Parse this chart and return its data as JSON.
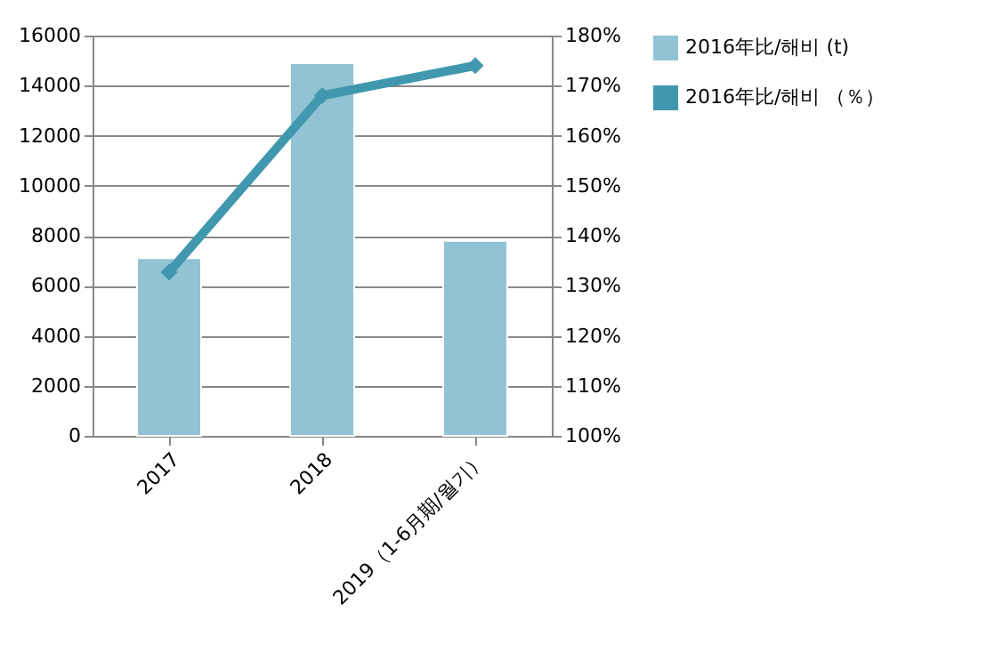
{
  "chart_data": {
    "type": "bar",
    "categories": [
      "2017",
      "2018",
      "2019（1-6月期/월기）"
    ],
    "series": [
      {
        "name": "2016年比/해비 (t)",
        "color": "#92c3d5",
        "values": [
          7100,
          14900,
          7800
        ]
      },
      {
        "name": "2016年比/해비 （％）",
        "type": "line",
        "axis": "y2",
        "color": "#4198ae",
        "values": [
          132.7,
          168,
          174
        ]
      }
    ],
    "ylim": [
      0,
      16000
    ],
    "yticks": [
      0,
      2000,
      4000,
      6000,
      8000,
      10000,
      12000,
      14000,
      16000
    ],
    "y2lim": [
      100,
      180
    ],
    "y2ticks": [
      {
        "value": 100,
        "label": "100%"
      },
      {
        "value": 110,
        "label": "110%"
      },
      {
        "value": 120,
        "label": "120%"
      },
      {
        "value": 130,
        "label": "130%"
      },
      {
        "value": 140,
        "label": "140%"
      },
      {
        "value": 150,
        "label": "150%"
      },
      {
        "value": 160,
        "label": "160%"
      },
      {
        "value": 170,
        "label": "170%"
      },
      {
        "value": 180,
        "label": "180%"
      }
    ],
    "grid": "y",
    "legend": "right",
    "marker": "diamond",
    "line_style": "solid"
  }
}
